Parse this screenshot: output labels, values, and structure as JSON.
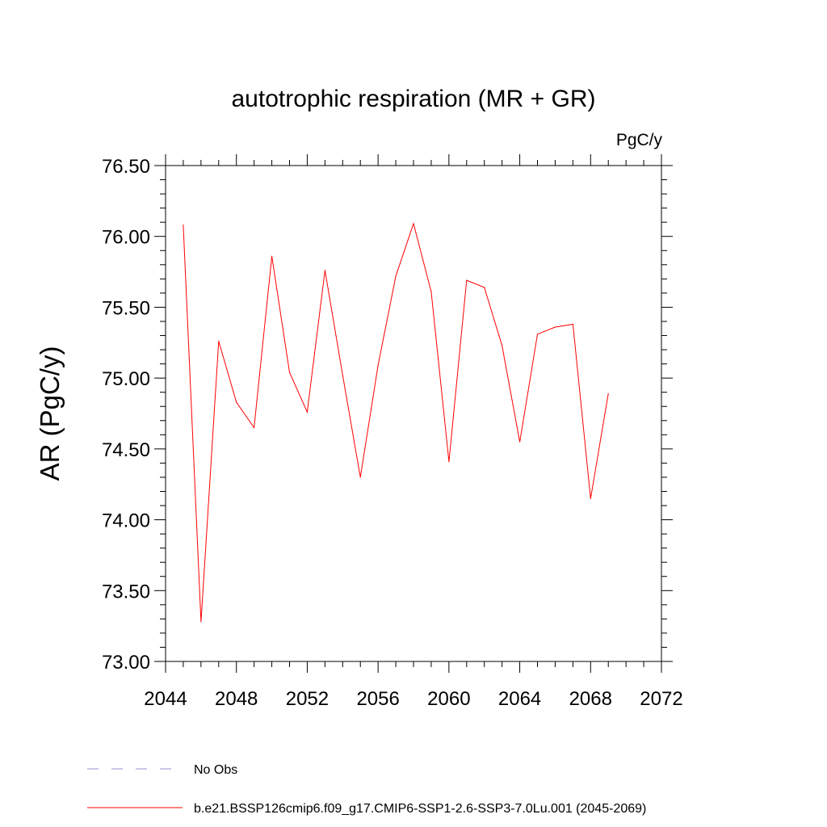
{
  "chart_data": {
    "type": "line",
    "title": "autotrophic respiration (MR + GR)",
    "units": "PgC/y",
    "ylabel": "AR  (PgC/y)",
    "xlabel": "",
    "xlim": [
      2044,
      2072
    ],
    "ylim": [
      73.0,
      76.5
    ],
    "xticks": [
      2044,
      2048,
      2052,
      2056,
      2060,
      2064,
      2068,
      2072
    ],
    "xtick_labels": [
      "2044",
      "2048",
      "2052",
      "2056",
      "2060",
      "2064",
      "2068",
      "2072"
    ],
    "yticks": [
      73.0,
      73.5,
      74.0,
      74.5,
      75.0,
      75.5,
      76.0,
      76.5
    ],
    "ytick_labels": [
      "73.00",
      "73.50",
      "74.00",
      "74.50",
      "75.00",
      "75.50",
      "76.00",
      "76.50"
    ],
    "grid": false,
    "legend_position": "bottom",
    "series": [
      {
        "name": "b.e21.BSSP126cmip6.f09_g17.CMIP6-SSP1-2.6-SSP3-7.0Lu.001 (2045-2069)",
        "color": "#ff0000",
        "x": [
          2045,
          2046,
          2047,
          2048,
          2049,
          2050,
          2051,
          2052,
          2053,
          2054,
          2055,
          2056,
          2057,
          2058,
          2059,
          2060,
          2061,
          2062,
          2063,
          2064,
          2065,
          2066,
          2067,
          2068,
          2069
        ],
        "values": [
          76.08,
          73.28,
          75.26,
          74.83,
          74.65,
          75.86,
          75.04,
          74.76,
          75.76,
          75.02,
          74.3,
          75.09,
          75.72,
          76.09,
          75.61,
          74.41,
          75.69,
          75.64,
          75.23,
          74.55,
          75.31,
          75.36,
          75.38,
          74.15,
          74.89
        ]
      }
    ],
    "legend": [
      {
        "label": "No Obs",
        "color": "#9a8fd0",
        "dashed": true
      },
      {
        "label": "b.e21.BSSP126cmip6.f09_g17.CMIP6-SSP1-2.6-SSP3-7.0Lu.001 (2045-2069)",
        "color": "#ff0000",
        "dashed": false
      }
    ]
  }
}
